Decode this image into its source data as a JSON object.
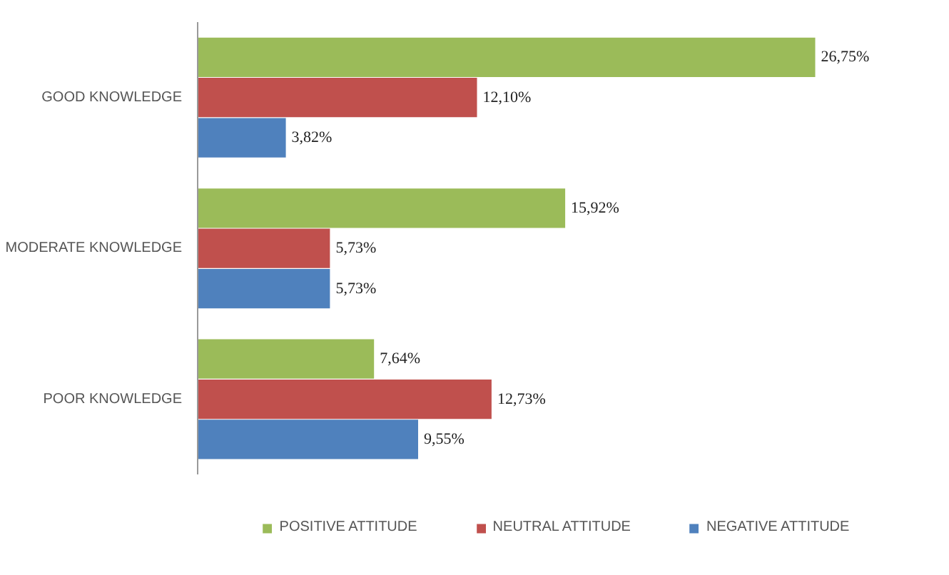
{
  "chart_data": {
    "type": "bar",
    "orientation": "horizontal",
    "categories": [
      "GOOD KNOWLEDGE",
      "MODERATE KNOWLEDGE",
      "POOR KNOWLEDGE"
    ],
    "series": [
      {
        "name": "POSITIVE ATTITUDE",
        "color": "#9bbb59",
        "values": [
          26.75,
          15.92,
          7.64
        ],
        "value_labels": [
          "26,75%",
          "15,92%",
          "7,64%"
        ]
      },
      {
        "name": "NEUTRAL ATTITUDE",
        "color": "#c0504d",
        "values": [
          12.1,
          5.73,
          12.73
        ],
        "value_labels": [
          "12,10%",
          "5,73%",
          "12,73%"
        ]
      },
      {
        "name": "NEGATIVE ATTITUDE",
        "color": "#4f81bd",
        "values": [
          3.82,
          5.73,
          9.55
        ],
        "value_labels": [
          "3,82%",
          "5,73%",
          "9,55%"
        ]
      }
    ],
    "legend": "bottom",
    "grid": false
  }
}
